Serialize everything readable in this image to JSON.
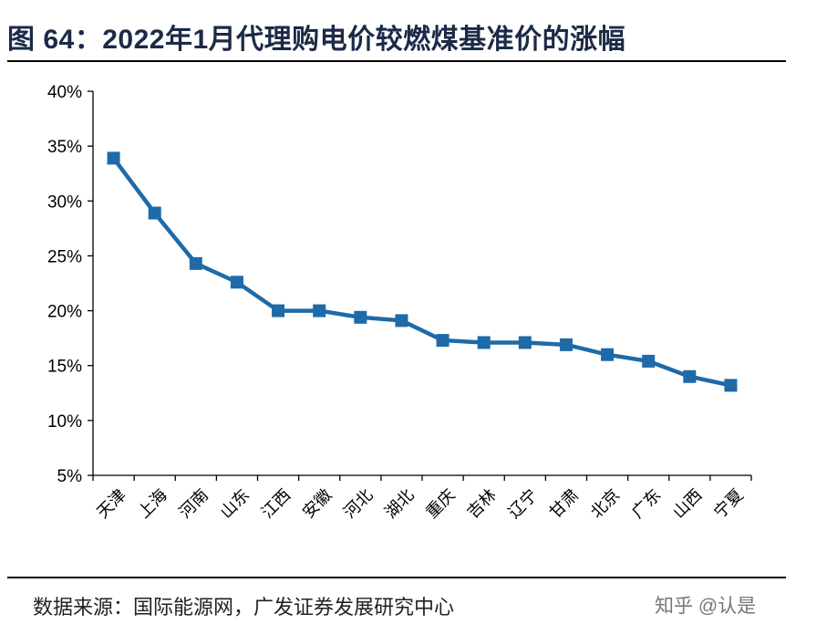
{
  "title": "图 64：2022年1月代理购电价较燃煤基准价的涨幅",
  "source": "数据来源：国际能源网，广发证券发展研究中心",
  "watermark": "知乎 @认是",
  "chart_data": {
    "type": "line",
    "title": "",
    "xlabel": "",
    "ylabel": "",
    "categories": [
      "天津",
      "上海",
      "河南",
      "山东",
      "江西",
      "安徽",
      "河北",
      "湖北",
      "重庆",
      "吉林",
      "辽宁",
      "甘肃",
      "北京",
      "广东",
      "山西",
      "宁夏"
    ],
    "series": [
      {
        "values": [
          33.9,
          28.9,
          24.3,
          22.6,
          20.0,
          20.0,
          19.4,
          19.1,
          17.3,
          17.1,
          17.1,
          16.9,
          16.0,
          15.4,
          14.0,
          13.2
        ]
      }
    ],
    "ylim": [
      5,
      40
    ],
    "yticks": [
      "5%",
      "10%",
      "15%",
      "20%",
      "25%",
      "30%",
      "35%",
      "40%"
    ],
    "grid": false,
    "legend": "none",
    "marker": "square",
    "color": "#1f6aa8"
  }
}
